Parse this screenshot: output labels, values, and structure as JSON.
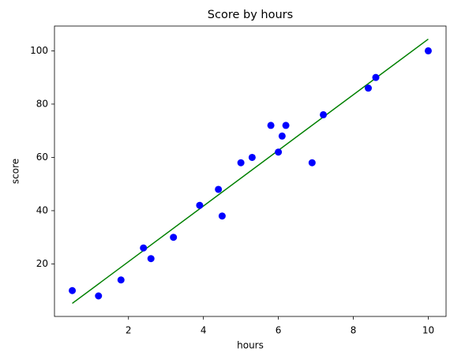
{
  "chart_data": {
    "type": "scatter",
    "title": "Score by hours",
    "x_label": "hours",
    "y_label": "score",
    "x": [
      0.5,
      1.2,
      1.8,
      2.4,
      2.6,
      3.2,
      3.9,
      4.4,
      4.5,
      5.0,
      5.3,
      5.8,
      6.0,
      6.1,
      6.2,
      6.9,
      7.2,
      8.4,
      8.6,
      10
    ],
    "values": [
      10,
      8,
      14,
      26,
      22,
      30,
      42,
      48,
      38,
      58,
      60,
      72,
      62,
      68,
      72,
      58,
      76,
      86,
      90,
      100
    ],
    "color": "#0000ff",
    "fit_line": {
      "x": [
        0.5,
        10
      ],
      "values": [
        5.2,
        104.4
      ],
      "color": "#008000"
    },
    "xlim": [
      0.025,
      10.475
    ],
    "xticks": [
      2,
      4,
      6,
      8,
      10
    ],
    "ylim": [
      0.3,
      109.3
    ],
    "yticks": [
      20,
      40,
      60,
      80,
      100
    ]
  }
}
